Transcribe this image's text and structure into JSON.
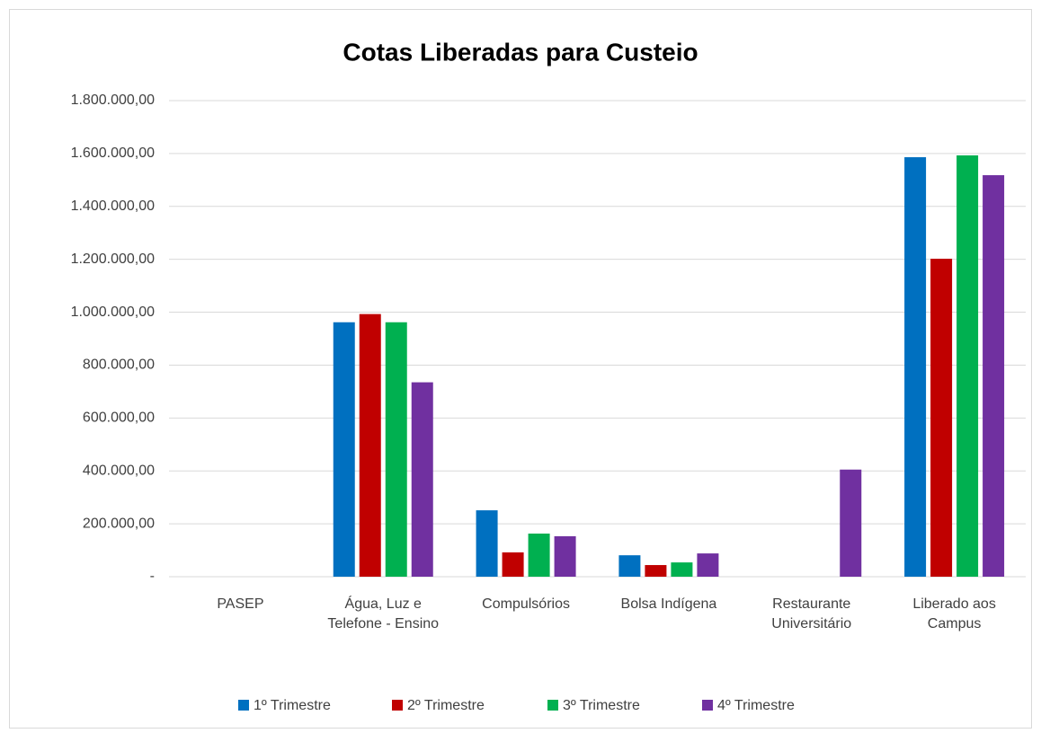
{
  "chart_data": {
    "type": "bar",
    "title": "Cotas Liberadas para Custeio",
    "categories": [
      "PASEP",
      "Água, Luz e Telefone - Ensino",
      "Compulsórios",
      "Bolsa Indígena",
      "Restaurante Universitário",
      "Liberado aos Campus"
    ],
    "series": [
      {
        "name": "1º Trimestre",
        "color": "#0070c0",
        "values": [
          0,
          962000,
          251000,
          81000,
          0,
          1586000
        ]
      },
      {
        "name": "2º Trimestre",
        "color": "#c00000",
        "values": [
          0,
          993000,
          92000,
          44000,
          0,
          1202000
        ]
      },
      {
        "name": "3º Trimestre",
        "color": "#00b050",
        "values": [
          0,
          962000,
          163000,
          54000,
          0,
          1593000
        ]
      },
      {
        "name": "4º Trimestre",
        "color": "#7030a0",
        "values": [
          0,
          735000,
          153000,
          88000,
          405000,
          1518000
        ]
      }
    ],
    "ylim": [
      0,
      1800000
    ],
    "yticks": [
      {
        "value": 0,
        "label": "-"
      },
      {
        "value": 200000,
        "label": "200.000,00"
      },
      {
        "value": 400000,
        "label": "400.000,00"
      },
      {
        "value": 600000,
        "label": "600.000,00"
      },
      {
        "value": 800000,
        "label": "800.000,00"
      },
      {
        "value": 1000000,
        "label": "1.000.000,00"
      },
      {
        "value": 1200000,
        "label": "1.200.000,00"
      },
      {
        "value": 1400000,
        "label": "1.400.000,00"
      },
      {
        "value": 1600000,
        "label": "1.600.000,00"
      },
      {
        "value": 1800000,
        "label": "1.800.000,00"
      }
    ],
    "grid": true,
    "legend": "bottom"
  }
}
